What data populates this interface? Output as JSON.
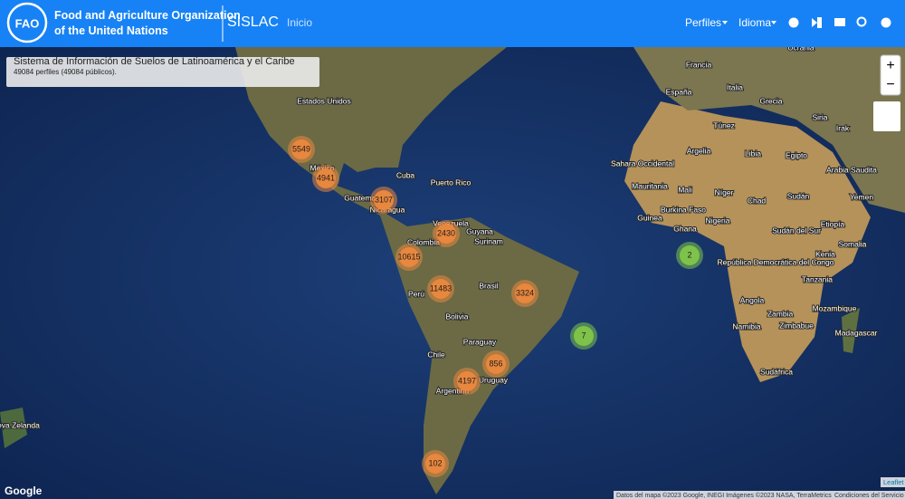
{
  "header": {
    "org_line1": "Food and Agriculture Organization",
    "org_line2": "of the United Nations",
    "app": "SISLAC",
    "nav": "Inicio",
    "menus": [
      "Perfiles",
      "Idioma"
    ],
    "logo": "FAO"
  },
  "info": {
    "title": "Sistema de Información de Suelos de Latinoamérica y el Caribe",
    "subtitle": "49084 perfiles (49084 públicos)."
  },
  "zoom": {
    "in": "+",
    "out": "−"
  },
  "clusters": [
    {
      "count": 5549,
      "color": "#e8873e"
    },
    {
      "count": 4941,
      "color": "#e8873e"
    },
    {
      "count": 3107,
      "color": "#e8873e"
    },
    {
      "count": 2430,
      "color": "#e8873e"
    },
    {
      "count": 10615,
      "color": "#e8873e"
    },
    {
      "count": 11483,
      "color": "#e8873e"
    },
    {
      "count": 3324,
      "color": "#e8873e"
    },
    {
      "count": 856,
      "color": "#e8873e"
    },
    {
      "count": 4197,
      "color": "#e8873e"
    },
    {
      "count": 102,
      "color": "#e8873e"
    },
    {
      "count": 2,
      "color": "#7ec24a"
    },
    {
      "count": 7,
      "color": "#7ec24a"
    }
  ],
  "places": [
    "Estados Unidos",
    "México",
    "Cuba",
    "Puerto Rico",
    "Guatemala",
    "Nicaragua",
    "Venezuela",
    "Guyana",
    "Surinam",
    "Colombia",
    "Perú",
    "Brasil",
    "Bolivia",
    "Paraguay",
    "Chile",
    "Argentina",
    "Uruguay",
    "Nueva Zelanda",
    "Francia",
    "España",
    "Italia",
    "Grecia",
    "Ucrania",
    "Túnez",
    "Argelia",
    "Libia",
    "Egipto",
    "Sahara Occidental",
    "Mauritania",
    "Mali",
    "Níger",
    "Chad",
    "Sudán",
    "Burkina Faso",
    "Guinea",
    "Nigeria",
    "Ghana",
    "Sudán del Sur",
    "Etiopía",
    "Somalia",
    "Kenia",
    "República Democrática del Congo",
    "Tanzania",
    "Angola",
    "Zambia",
    "Mozambique",
    "Namibia",
    "Zimbabue",
    "Madagascar",
    "Sudáfrica",
    "Siria",
    "Irak",
    "Arabia Saudita",
    "Yemen"
  ],
  "attribution": {
    "data": "Datos del mapa ©2023 Google, INEGI Imágenes ©2023 NASA, TerraMetrics",
    "terms": "Condiciones del Servicio",
    "leaflet": "Leaflet",
    "google": "Google"
  }
}
